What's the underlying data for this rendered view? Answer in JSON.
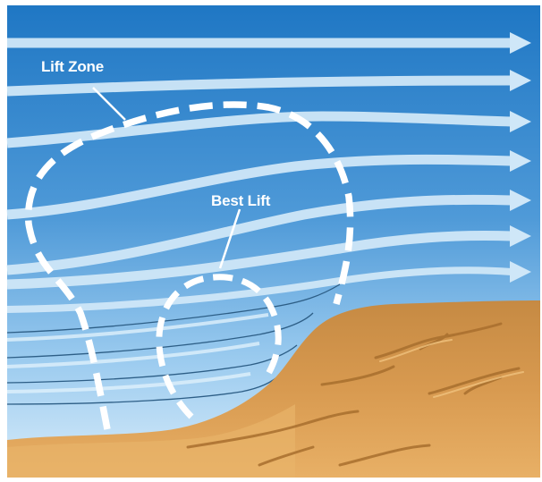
{
  "labels": {
    "lift_zone": "Lift Zone",
    "best_lift": "Best Lift"
  },
  "colors": {
    "sky_top": "#1f77c4",
    "sky_mid": "#6fb1e3",
    "sky_bottom": "#d8ecfa",
    "airflow_arrow": "#cfe7f8",
    "terrain_light": "#e4a85a",
    "terrain_dark": "#b37a36",
    "zone_outline": "#ffffff"
  }
}
